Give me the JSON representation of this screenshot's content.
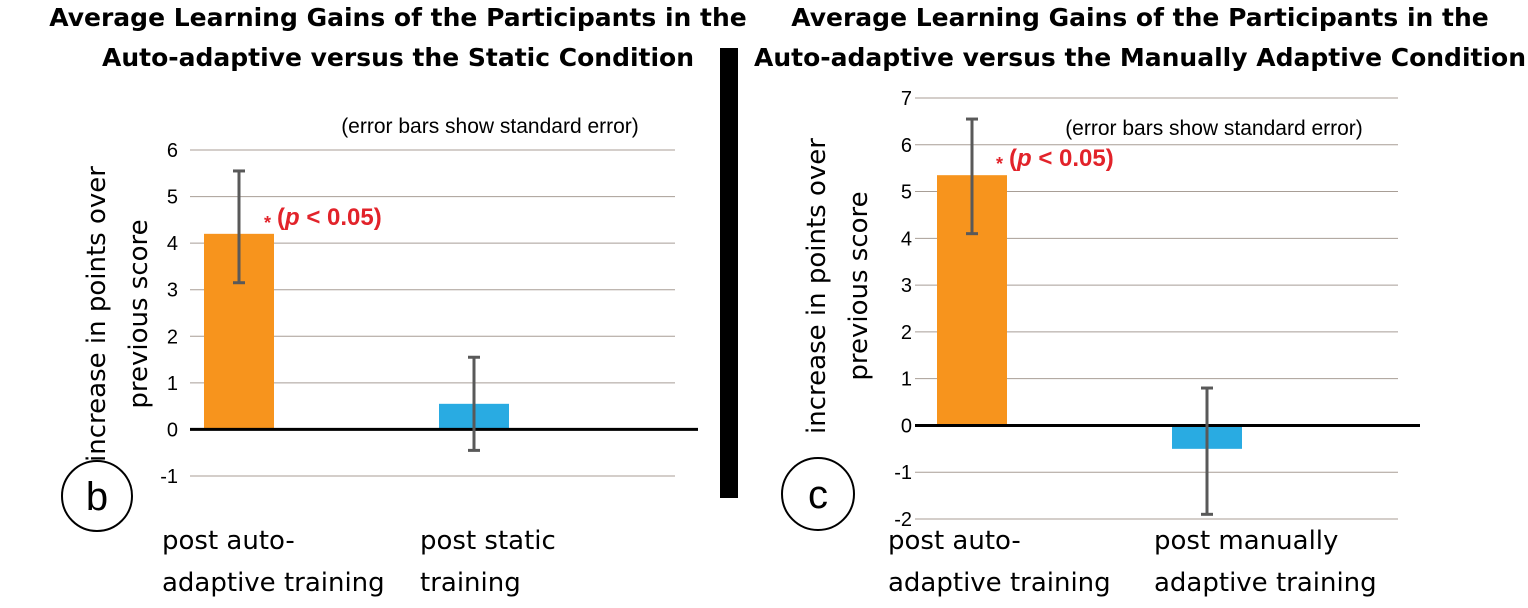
{
  "chart_data": [
    {
      "type": "bar",
      "panel_label": "b",
      "title_lines": [
        "Average Learning Gains of the Participants in the",
        "Auto-adaptive versus the Static Condition"
      ],
      "ylabel_lines": [
        "increase in points over",
        "previous score"
      ],
      "note": "(error bars show standard error)",
      "categories": [
        [
          "post auto-",
          "adaptive training"
        ],
        [
          "post static",
          "training"
        ]
      ],
      "values": [
        4.2,
        0.55
      ],
      "error_low": [
        3.15,
        -0.45
      ],
      "error_high": [
        5.55,
        1.55
      ],
      "colors": [
        "#f7941d",
        "#29abe2"
      ],
      "ylim": [
        -1,
        6
      ],
      "yticks": [
        -1,
        0,
        1,
        2,
        3,
        4,
        5,
        6
      ],
      "significance": {
        "bar": 0,
        "star": "*",
        "prefix": "(",
        "p": "p",
        "rest": " < 0.05)"
      },
      "grid": true
    },
    {
      "type": "bar",
      "panel_label": "c",
      "title_lines": [
        "Average Learning Gains of the Participants in the",
        "Auto-adaptive versus the Manually Adaptive Condition"
      ],
      "ylabel_lines": [
        "increase in points over",
        "previous score"
      ],
      "note": "(error bars show standard error)",
      "categories": [
        [
          "post auto-",
          "adaptive training"
        ],
        [
          "post manually",
          "adaptive training"
        ]
      ],
      "values": [
        5.35,
        -0.5
      ],
      "error_low": [
        4.1,
        -1.9
      ],
      "error_high": [
        6.55,
        0.8
      ],
      "colors": [
        "#f7941d",
        "#29abe2"
      ],
      "ylim": [
        -2,
        7
      ],
      "yticks": [
        -2,
        -1,
        0,
        1,
        2,
        3,
        4,
        5,
        6,
        7
      ],
      "significance": {
        "bar": 0,
        "star": "*",
        "prefix": "(",
        "p": "p",
        "rest": " < 0.05)"
      },
      "grid": true
    }
  ]
}
